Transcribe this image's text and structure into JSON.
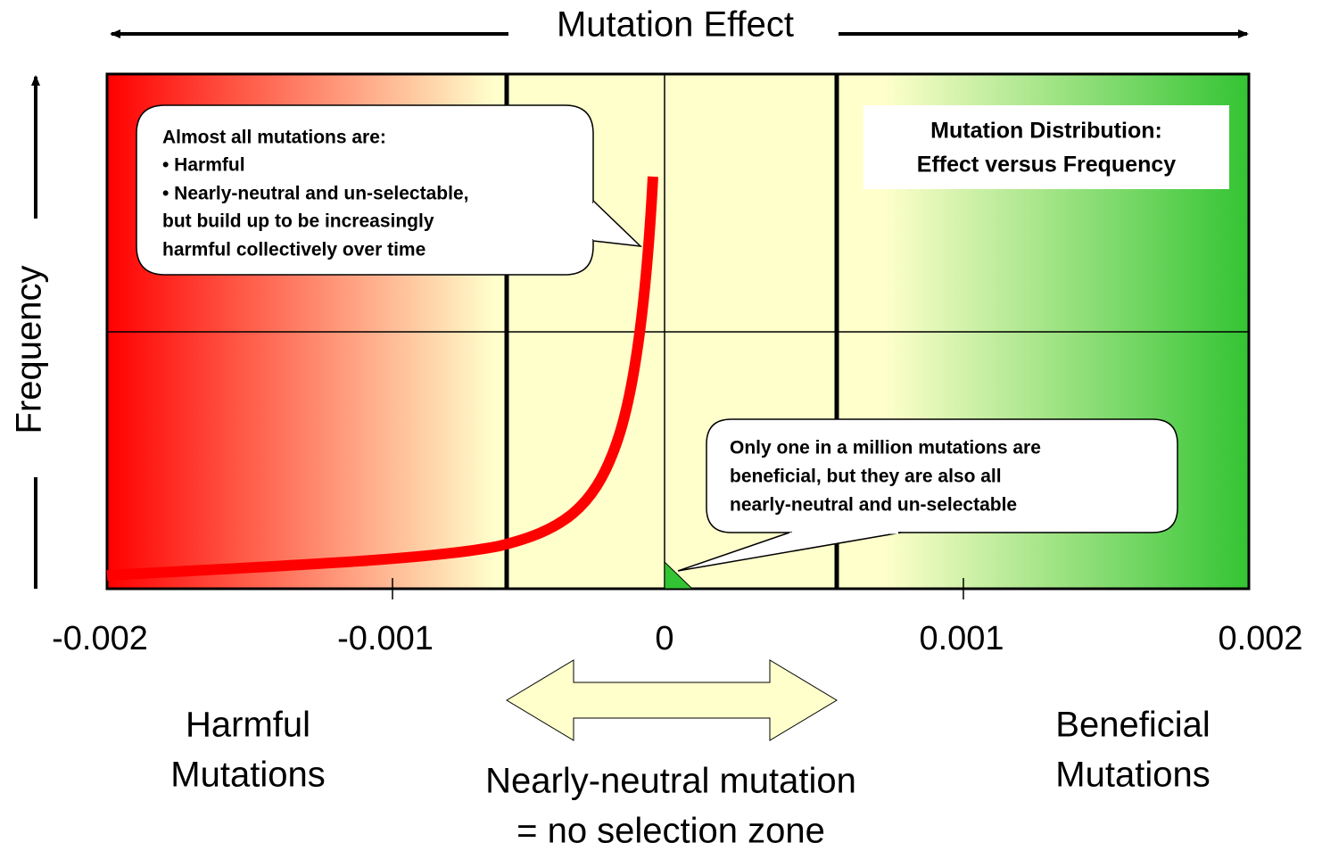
{
  "title": "Mutation Effect",
  "y_label": "Frequency",
  "x_ticks": [
    "-0.002",
    "-0.001",
    "0",
    "0.001",
    "0.002"
  ],
  "callouts": [
    {
      "lines": [
        "Almost all mutations are:",
        "• Harmful",
        "• Nearly-neutral and un-selectable,",
        "but build up to be increasingly",
        "harmful collectively over time"
      ]
    },
    {
      "lines": [
        "Only one in a million mutations are",
        "beneficial, but they are also all",
        "nearly-neutral and un-selectable"
      ]
    }
  ],
  "info_box": {
    "lines": [
      "Mutation Distribution:",
      "Effect versus Frequency"
    ]
  },
  "zones": {
    "harmful": [
      "Harmful",
      "Mutations"
    ],
    "neutral": [
      "Nearly-neutral mutation",
      "= no selection zone"
    ],
    "beneficial": [
      "Beneficial",
      "Mutations"
    ]
  }
}
